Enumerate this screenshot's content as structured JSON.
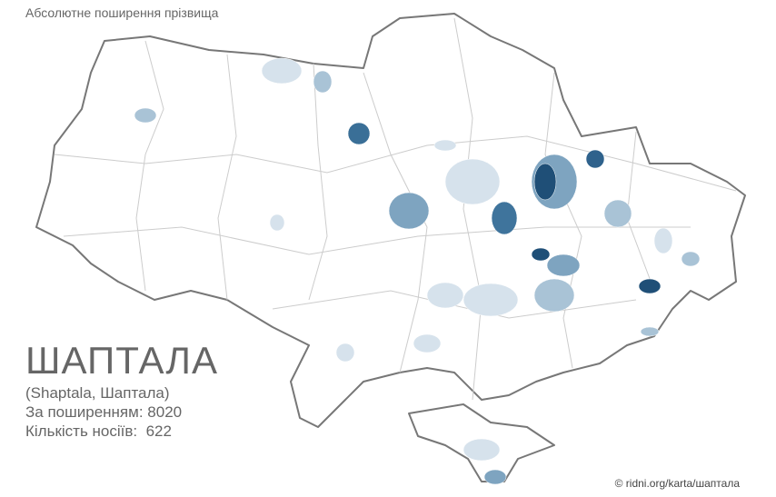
{
  "header": {
    "title": "Абсолютне поширення прізвища"
  },
  "surname": {
    "name": "ШАПТАЛА",
    "variants": "(Shaptala, Шаптала)",
    "spread_label": "За поширенням:",
    "spread_value": 8020,
    "carriers_label": "Кількість носіїв:",
    "carriers_value": 622
  },
  "footer": {
    "credit": "© ridni.org/karta/шаптала"
  }
}
